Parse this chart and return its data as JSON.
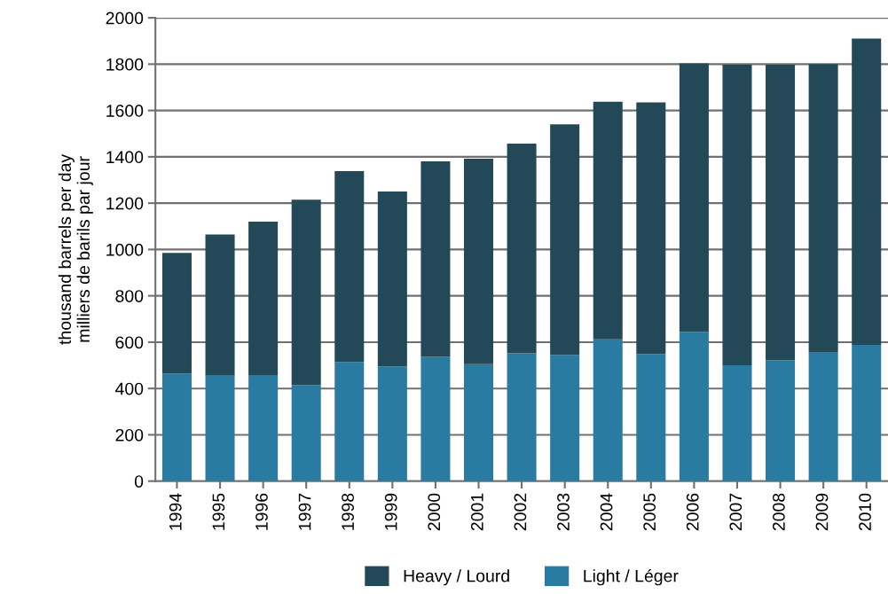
{
  "chart_data": {
    "type": "bar",
    "stacked": true,
    "ylabel": "thousand barrels per day\nmilliers de barils par jour",
    "categories": [
      "1994",
      "1995",
      "1996",
      "1997",
      "1998",
      "1999",
      "2000",
      "2001",
      "2002",
      "2003",
      "2004",
      "2005",
      "2006",
      "2007",
      "2008",
      "2009",
      "2010"
    ],
    "series": [
      {
        "name": "Light / Léger",
        "color": "#2a7ba1",
        "values": [
          465,
          455,
          455,
          415,
          515,
          495,
          537,
          505,
          552,
          545,
          612,
          548,
          645,
          500,
          522,
          558,
          585
        ]
      },
      {
        "name": "Heavy / Lourd",
        "color": "#234857",
        "values": [
          520,
          610,
          665,
          800,
          823,
          755,
          843,
          887,
          905,
          995,
          1026,
          1087,
          1158,
          1298,
          1276,
          1242,
          1325
        ]
      }
    ],
    "ylim": [
      0,
      2000
    ],
    "yticks": [
      0,
      200,
      400,
      600,
      800,
      1000,
      1200,
      1400,
      1600,
      1800,
      2000
    ],
    "grid": "y",
    "legend": "bottom"
  }
}
